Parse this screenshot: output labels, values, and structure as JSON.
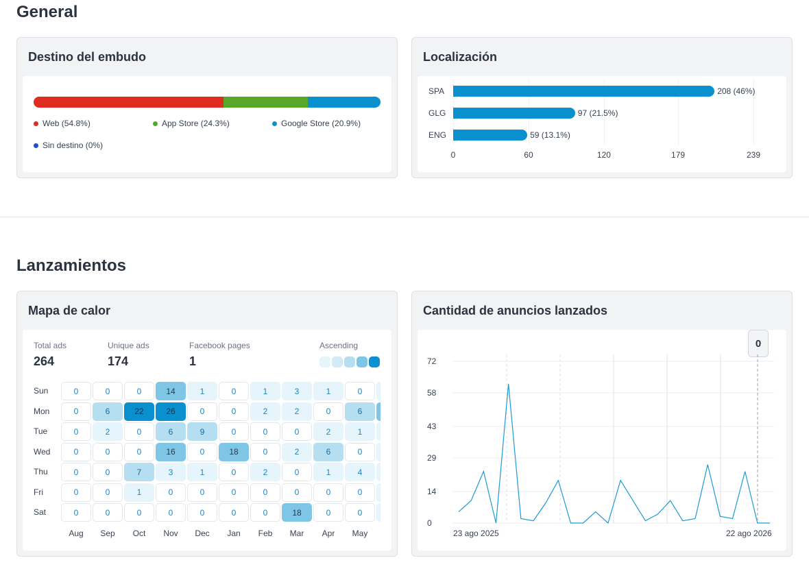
{
  "sections": {
    "general": "General",
    "launches": "Lanzamientos"
  },
  "funnel": {
    "title": "Destino del embudo",
    "segments": [
      {
        "label": "Web (54.8%)",
        "percent": 54.8,
        "color": "#e02b1f"
      },
      {
        "label": "App Store (24.3%)",
        "percent": 24.3,
        "color": "#57a828"
      },
      {
        "label": "Google Store (20.9%)",
        "percent": 20.9,
        "color": "#0a8fcf"
      },
      {
        "label": "Sin destino (0%)",
        "percent": 0,
        "color": "#1a4fcf"
      }
    ]
  },
  "location": {
    "title": "Localización",
    "chart_data": {
      "type": "bar",
      "orientation": "horizontal",
      "categories": [
        "SPA",
        "GLG",
        "ENG"
      ],
      "values": [
        208,
        97,
        59
      ],
      "value_labels": [
        "208 (46%)",
        "97 (21.5%)",
        "59 (13.1%)"
      ],
      "x_ticks": [
        "0",
        "60",
        "120",
        "179",
        "239"
      ],
      "xlim": [
        0,
        239
      ],
      "color": "#0a8fcf"
    }
  },
  "heatmap": {
    "title": "Mapa de calor",
    "stats": [
      {
        "label": "Total ads",
        "value": "264"
      },
      {
        "label": "Unique ads",
        "value": "174"
      },
      {
        "label": "Facebook pages",
        "value": "1"
      }
    ],
    "scale_label": "Ascending",
    "scale_colors": [
      "#e6f4fb",
      "#d2ebf7",
      "#b5def1",
      "#7fc5e6",
      "#0a8fcf"
    ],
    "chart_data": {
      "type": "heatmap",
      "rows": [
        "Sun",
        "Mon",
        "Tue",
        "Wed",
        "Thu",
        "Fri",
        "Sat"
      ],
      "columns": [
        "Aug",
        "Sep",
        "Oct",
        "Nov",
        "Dec",
        "Jan",
        "Feb",
        "Mar",
        "Apr",
        "May"
      ],
      "values": [
        [
          0,
          0,
          0,
          14,
          1,
          0,
          1,
          3,
          1,
          0
        ],
        [
          0,
          6,
          22,
          26,
          0,
          0,
          2,
          2,
          0,
          6
        ],
        [
          0,
          2,
          0,
          6,
          9,
          0,
          0,
          0,
          2,
          1
        ],
        [
          0,
          0,
          0,
          16,
          0,
          18,
          0,
          2,
          6,
          0
        ],
        [
          0,
          0,
          7,
          3,
          1,
          0,
          2,
          0,
          1,
          4
        ],
        [
          0,
          0,
          1,
          0,
          0,
          0,
          0,
          0,
          0,
          0
        ],
        [
          0,
          0,
          0,
          0,
          0,
          0,
          0,
          18,
          0,
          0
        ]
      ]
    }
  },
  "launched": {
    "title": "Cantidad de anuncios lanzados",
    "badge": "0",
    "chart_data": {
      "type": "line",
      "color": "#1c9ad6",
      "y_ticks": [
        "72",
        "58",
        "43",
        "29",
        "14",
        "0"
      ],
      "ylim": [
        0,
        72
      ],
      "x_start_label": "23 ago 2025",
      "x_end_label": "22 ago 2026",
      "values": [
        5,
        10,
        23,
        0,
        62,
        2,
        1,
        9,
        19,
        0,
        0,
        5,
        0,
        19,
        10,
        1,
        4,
        10,
        1,
        2,
        26,
        3,
        2,
        23,
        0,
        0
      ]
    }
  }
}
